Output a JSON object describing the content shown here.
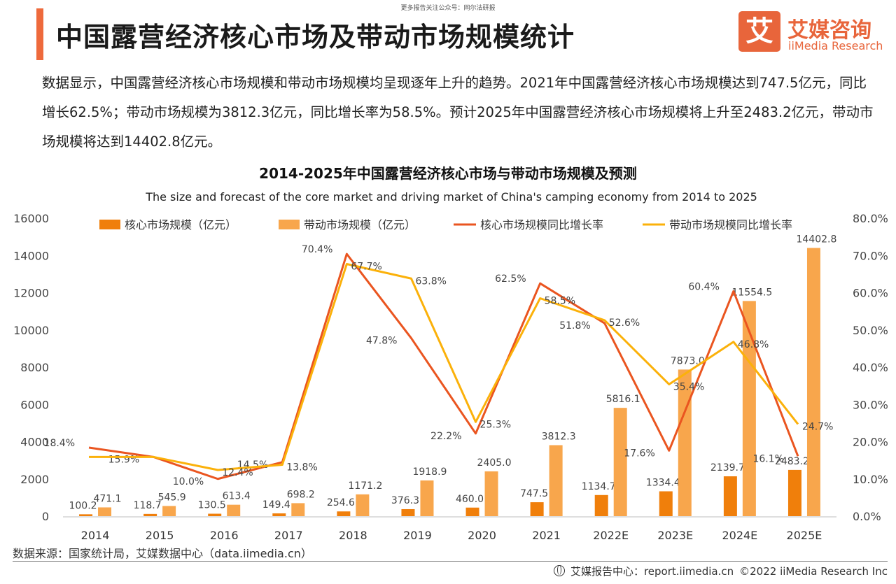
{
  "header": {
    "top_note": "更多报告关注公众号：网尔法研报",
    "title": "中国露营经济核心市场及带动市场规模统计",
    "logo_mark": "艾",
    "logo_cn": "艾媒咨询",
    "logo_en": "iiMedia Research"
  },
  "description": "数据显示，中国露营经济核心市场规模和带动市场规模均呈现逐年上升的趋势。2021年中国露营经济核心市场规模达到747.5亿元，同比增长62.5%；带动市场规模为3812.3亿元，同比增长率为58.5%。预计2025年中国露营经济核心市场规模将上升至2483.2亿元，带动市场规模将达到14402.8亿元。",
  "chart_data": {
    "type": "bar",
    "title": "2014-2025年中国露营经济核心市场与带动市场规模及预测",
    "subtitle": "The size and forecast of the core market and driving market of China's camping economy from 2014 to 2025",
    "categories": [
      "2014",
      "2015",
      "2016",
      "2017",
      "2018",
      "2019",
      "2020",
      "2021",
      "2022E",
      "2023E",
      "2024E",
      "2025E"
    ],
    "series": [
      {
        "name": "核心市场规模（亿元）",
        "type": "bar",
        "axis": "left",
        "color": "#f07f0b",
        "values": [
          100.2,
          118.7,
          130.5,
          149.4,
          254.6,
          376.3,
          460.0,
          747.5,
          1134.7,
          1334.4,
          2139.7,
          2483.2
        ],
        "labels": [
          "100.2",
          "118.7",
          "130.5",
          "149.4",
          "254.6",
          "376.3",
          "460.0",
          "747.5",
          "1134.7",
          "1334.4",
          "2139.7",
          "2483.2"
        ]
      },
      {
        "name": "带动市场规模（亿元）",
        "type": "bar",
        "axis": "left",
        "color": "#f8a64c",
        "values": [
          471.1,
          545.9,
          613.4,
          698.2,
          1171.2,
          1918.9,
          2405.0,
          3812.3,
          5816.1,
          7873.0,
          11554.5,
          14402.8
        ],
        "labels": [
          "471.1",
          "545.9",
          "613.4",
          "698.2",
          "1171.2",
          "1918.9",
          "2405.0",
          "3812.3",
          "5816.1",
          "7873.0",
          "11554.5",
          "14402.8"
        ]
      },
      {
        "name": "核心市场规模同比增长率",
        "type": "line",
        "axis": "right",
        "color": "#ea5520",
        "values": [
          18.4,
          15.9,
          10.0,
          14.5,
          70.4,
          47.8,
          22.2,
          62.5,
          51.8,
          17.6,
          60.4,
          16.1
        ],
        "labels": [
          "18.4%",
          "15.9%",
          "10.0%",
          "14.5%",
          "70.4%",
          "47.8%",
          "22.2%",
          "62.5%",
          "51.8%",
          "17.6%",
          "60.4%",
          "16.1%"
        ]
      },
      {
        "name": "带动市场规模同比增长率",
        "type": "line",
        "axis": "right",
        "color": "#fbb10a",
        "values": [
          15.9,
          15.9,
          12.4,
          13.8,
          67.7,
          63.8,
          25.3,
          58.5,
          52.6,
          35.4,
          46.8,
          24.7
        ],
        "labels": [
          "",
          "",
          "12.4%",
          "13.8%",
          "67.7%",
          "63.8%",
          "25.3%",
          "58.5%",
          "52.6%",
          "35.4%",
          "46.8%",
          "24.7%"
        ]
      }
    ],
    "ylim_left": [
      0,
      16000
    ],
    "yticks_left": [
      "0",
      "2000",
      "4000",
      "6000",
      "8000",
      "10000",
      "12000",
      "14000",
      "16000"
    ],
    "ylim_right": [
      0,
      80
    ],
    "yticks_right": [
      "0.0%",
      "10.0%",
      "20.0%",
      "30.0%",
      "40.0%",
      "50.0%",
      "60.0%",
      "70.0%",
      "80.0%"
    ],
    "grid": false,
    "legend_position": "top"
  },
  "footer": {
    "source": "数据来源：国家统计局，艾媒数据中心（data.iimedia.cn）",
    "report_center": "艾媒报告中心：report.iimedia.cn",
    "copyright": "©2022  iiMedia Research  Inc"
  }
}
